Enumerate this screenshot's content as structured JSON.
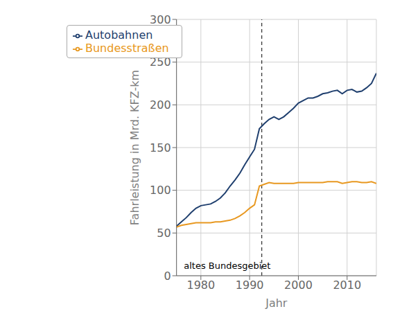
{
  "chart_data": {
    "type": "line",
    "xlabel": "Jahr",
    "ylabel": "Fahrleistung in Mrd. KFZ-km",
    "x": [
      1975,
      1976,
      1977,
      1978,
      1979,
      1980,
      1981,
      1982,
      1983,
      1984,
      1985,
      1986,
      1987,
      1988,
      1989,
      1990,
      1991,
      1992,
      1993,
      1994,
      1995,
      1996,
      1997,
      1998,
      1999,
      2000,
      2001,
      2002,
      2003,
      2004,
      2005,
      2006,
      2007,
      2008,
      2009,
      2010,
      2011,
      2012,
      2013,
      2014,
      2015,
      2016
    ],
    "series": [
      {
        "name": "Autobahnen",
        "color": "#1f3f6e",
        "values": [
          58,
          63,
          68,
          74,
          79,
          82,
          83,
          84,
          87,
          91,
          97,
          105,
          112,
          120,
          130,
          139,
          148,
          172,
          178,
          183,
          186,
          183,
          186,
          191,
          196,
          202,
          205,
          208,
          208,
          210,
          213,
          214,
          216,
          217,
          213,
          217,
          218,
          215,
          216,
          220,
          225,
          237
        ]
      },
      {
        "name": "Bundesstraßen",
        "color": "#e89820",
        "values": [
          57,
          59,
          60,
          61,
          62,
          62,
          62,
          62,
          63,
          63,
          64,
          65,
          67,
          70,
          74,
          79,
          83,
          105,
          107,
          109,
          108,
          108,
          108,
          108,
          108,
          109,
          109,
          109,
          109,
          109,
          109,
          110,
          110,
          110,
          108,
          109,
          110,
          110,
          109,
          109,
          110,
          108
        ]
      }
    ],
    "xlim": [
      1975,
      2016
    ],
    "ylim": [
      0,
      300
    ],
    "xticks": [
      1980,
      1990,
      2000,
      2010
    ],
    "yticks": [
      0,
      50,
      100,
      150,
      200,
      250,
      300
    ],
    "grid": true,
    "legend": "upper left",
    "reference_lines": [
      {
        "x": 1992.5,
        "line_style": "dashed"
      }
    ],
    "annotations": [
      {
        "text": "altes Bundesgebiet",
        "x": 1976.5,
        "y": 12
      }
    ]
  }
}
